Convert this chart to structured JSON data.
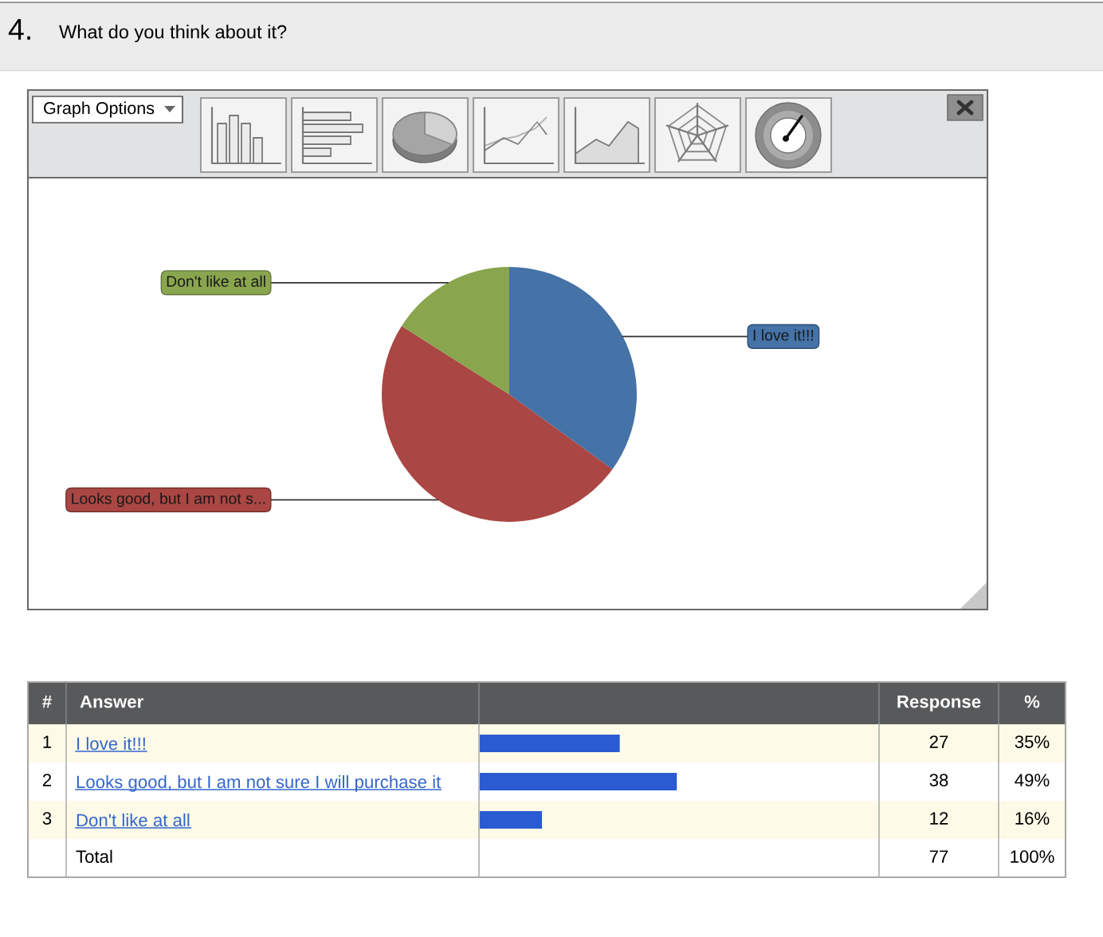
{
  "chart_data": [
    {
      "type": "pie",
      "title": "What do you think about it?",
      "categories": [
        "I love it!!!",
        "Looks good, but I am not s...",
        "Don't like at all"
      ],
      "values": [
        35,
        49,
        16
      ],
      "colors": [
        "#4572a7",
        "#aa4643",
        "#89a54e"
      ],
      "annotations": [
        "4.",
        "Graph Options"
      ]
    },
    {
      "type": "bar",
      "orientation": "horizontal",
      "categories": [
        "I love it!!!",
        "Looks good, but I am not sure I will purchase it",
        "Don't like at all"
      ],
      "values": [
        27,
        38,
        12
      ],
      "color": "#2a5bd0",
      "xlim": [
        0,
        77
      ],
      "data_labels": true,
      "tick_labels": "y",
      "annotations": [
        "#",
        "Answer",
        "Response",
        "%",
        "1",
        "2",
        "3",
        "35%",
        "49%",
        "16%",
        "Total",
        "77",
        "100%"
      ]
    }
  ]
}
